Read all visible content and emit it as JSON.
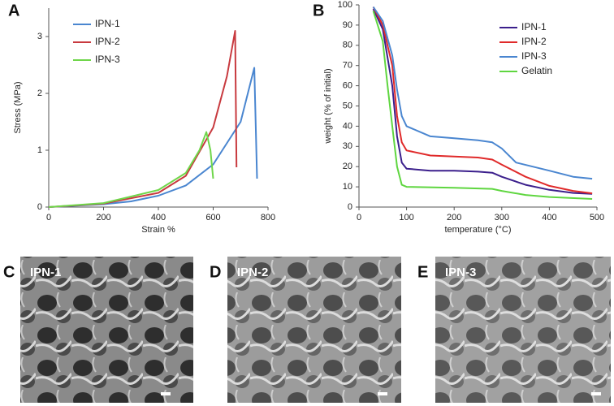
{
  "chart_data": [
    {
      "type": "line",
      "panel": "A",
      "x_label": "Strain %",
      "y_label": "Stress (MPa)",
      "xlim": [
        0,
        800
      ],
      "xticks": [
        0,
        200,
        400,
        600,
        800
      ],
      "ylim": [
        0,
        3.5
      ],
      "yticks": [
        0,
        1,
        2,
        3
      ],
      "legend": "upper left",
      "series": [
        {
          "name": "IPN-1",
          "color": "#4a86d0",
          "x": [
            0,
            200,
            300,
            400,
            500,
            600,
            700,
            750,
            760
          ],
          "values": [
            0,
            0.05,
            0.1,
            0.2,
            0.38,
            0.75,
            1.5,
            2.45,
            0.5
          ]
        },
        {
          "name": "IPN-2",
          "color": "#c83a3f",
          "x": [
            0,
            200,
            400,
            500,
            600,
            650,
            680,
            685
          ],
          "values": [
            0,
            0.06,
            0.25,
            0.55,
            1.4,
            2.3,
            3.1,
            0.7
          ]
        },
        {
          "name": "IPN-3",
          "color": "#6fd64a",
          "x": [
            0,
            200,
            400,
            500,
            550,
            575,
            590,
            600
          ],
          "values": [
            0,
            0.07,
            0.3,
            0.6,
            1.0,
            1.32,
            1.0,
            0.5
          ]
        }
      ]
    },
    {
      "type": "line",
      "panel": "B",
      "x_label": "temperature (°C)",
      "y_label": "weight (% of initial)",
      "xlim": [
        0,
        500
      ],
      "xticks": [
        0,
        100,
        200,
        300,
        400,
        500
      ],
      "ylim": [
        0,
        100
      ],
      "yticks": [
        0,
        10,
        20,
        30,
        40,
        50,
        60,
        70,
        80,
        90,
        100
      ],
      "legend": "upper right",
      "series": [
        {
          "name": "IPN-1",
          "color": "#3b1f8c",
          "x": [
            30,
            50,
            70,
            80,
            90,
            100,
            150,
            200,
            250,
            280,
            300,
            350,
            400,
            450,
            490
          ],
          "values": [
            98,
            88,
            60,
            35,
            22,
            19,
            18,
            18,
            17.5,
            17,
            15,
            11,
            8.5,
            7,
            6.5
          ]
        },
        {
          "name": "IPN-2",
          "color": "#e02a2a",
          "x": [
            30,
            50,
            70,
            80,
            90,
            100,
            150,
            200,
            250,
            280,
            300,
            350,
            400,
            450,
            490
          ],
          "values": [
            99,
            90,
            70,
            45,
            32,
            28,
            25.5,
            25,
            24.5,
            23.5,
            21,
            15,
            10.5,
            8,
            6.8
          ]
        },
        {
          "name": "IPN-3",
          "color": "#4a86d0",
          "x": [
            30,
            50,
            70,
            80,
            90,
            100,
            150,
            200,
            250,
            280,
            300,
            330,
            400,
            450,
            490
          ],
          "values": [
            99,
            92,
            75,
            58,
            45,
            40,
            35,
            34,
            33,
            32,
            29,
            22,
            18,
            15,
            14
          ]
        },
        {
          "name": "Gelatin",
          "color": "#5fd640",
          "x": [
            30,
            50,
            60,
            70,
            80,
            90,
            100,
            200,
            280,
            300,
            350,
            400,
            490
          ],
          "values": [
            97,
            82,
            60,
            40,
            20,
            11,
            10,
            9.5,
            9,
            8,
            6,
            5,
            4
          ]
        }
      ]
    }
  ],
  "images": [
    {
      "panel": "C",
      "label": "IPN-1"
    },
    {
      "panel": "D",
      "label": "IPN-2"
    },
    {
      "panel": "E",
      "label": "IPN-3"
    }
  ]
}
